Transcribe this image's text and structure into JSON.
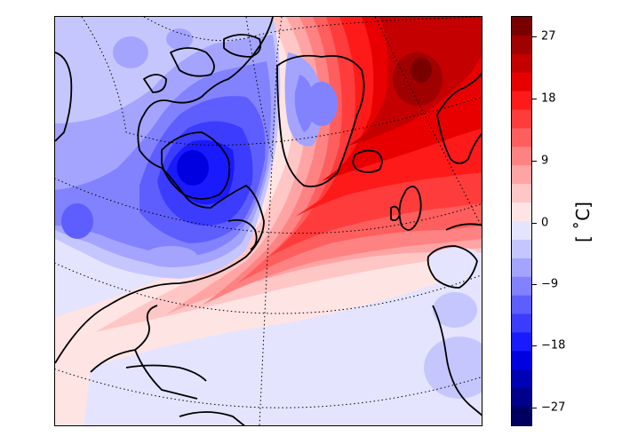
{
  "map": {
    "region": "North Atlantic",
    "projection": "conic",
    "graticule": "dotted",
    "coastlines": true,
    "field": "temperature anomaly",
    "features": [
      {
        "name": "warm-anomaly-north-atlantic",
        "sign": "positive",
        "peak": 27,
        "area": "Norwegian Sea / northeastern Atlantic"
      },
      {
        "name": "warm-anomaly-mid-atlantic-tongue",
        "sign": "positive",
        "peak": 18,
        "area": "central North Atlantic"
      },
      {
        "name": "cold-anomaly-hudson-bay",
        "sign": "negative",
        "peak": -21,
        "area": "Hudson Bay / northern Canada"
      },
      {
        "name": "cold-anomaly-canadian-archipelago",
        "sign": "negative",
        "peak": -12,
        "area": "Canadian Arctic Archipelago"
      },
      {
        "name": "cold-anomaly-central-greenland",
        "sign": "negative",
        "peak": -9,
        "area": "Greenland ice sheet"
      },
      {
        "name": "cool-anomaly-north-america",
        "sign": "negative",
        "peak": -6,
        "area": "central North America"
      }
    ]
  },
  "colorbar": {
    "unit_label": "[$^\\circ$C]",
    "unit_text": "[ ˚C]",
    "ticks": [
      "27",
      "18",
      "9",
      "0",
      "−9",
      "−18",
      "−27"
    ],
    "tick_values": [
      27,
      18,
      9,
      0,
      -9,
      -18,
      -27
    ],
    "range": [
      -30,
      30
    ],
    "colors": [
      "#00005f",
      "#00008a",
      "#0000b4",
      "#0000e0",
      "#1a1aff",
      "#3c3cff",
      "#5e5eff",
      "#8282ff",
      "#a4a4ff",
      "#c6c6ff",
      "#e4e4ff",
      "#ffe4e4",
      "#ffc6c6",
      "#ffa4a4",
      "#ff8282",
      "#ff5e5e",
      "#ff3c3c",
      "#ff1a1a",
      "#e80000",
      "#c40000",
      "#a00000",
      "#7a0000"
    ]
  }
}
